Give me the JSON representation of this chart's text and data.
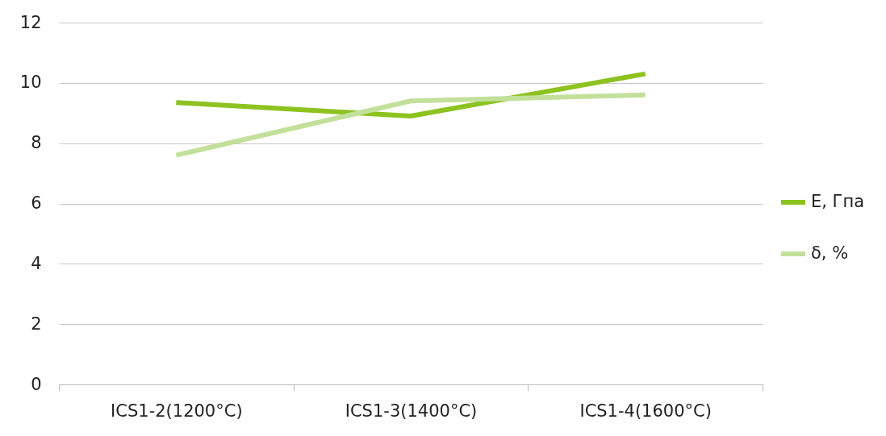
{
  "chart_data": {
    "type": "line",
    "categories": [
      "ICS1-2(1200°C)",
      "ICS1-3(1400°C)",
      "ICS1-4(1600°C)"
    ],
    "series": [
      {
        "name": "E, Гпа",
        "color": "#8dc21f",
        "values": [
          9.35,
          8.9,
          10.3
        ]
      },
      {
        "name": "δ, %",
        "color": "#c3e09a",
        "values": [
          7.6,
          9.4,
          9.6
        ]
      }
    ],
    "ylim": [
      0,
      12
    ],
    "yticks": [
      0,
      2,
      4,
      6,
      8,
      10,
      12
    ],
    "grid": "y",
    "legend": "right",
    "marker": "none",
    "line_style": "solid"
  }
}
